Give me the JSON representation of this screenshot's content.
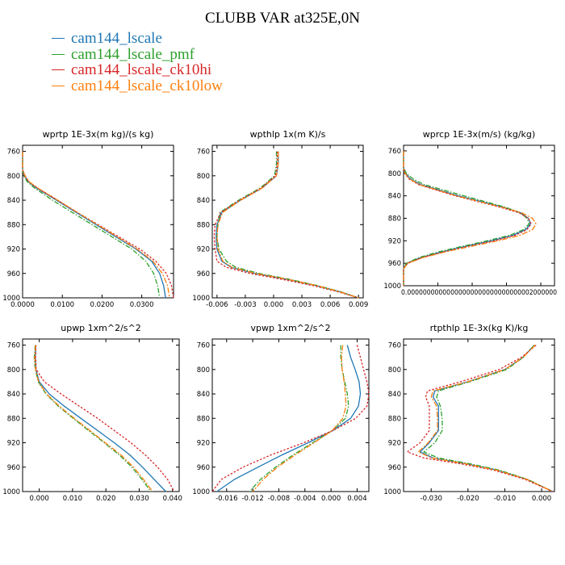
{
  "title": "CLUBB VAR at325E,0N",
  "legend": [
    {
      "name": "cam144_lscale",
      "color": "#1f77b4"
    },
    {
      "name": "cam144_lscale_pmf",
      "color": "#2ca02c"
    },
    {
      "name": "cam144_lscale_ck10hi",
      "color": "#d62728"
    },
    {
      "name": "cam144_lscale_ck10low",
      "color": "#ff7f0e"
    }
  ],
  "chart_data": [
    {
      "type": "line",
      "title": "wprtp   1E-3x(m kg)/(s kg)",
      "y_ticks": [
        "760",
        "800",
        "840",
        "880",
        "920",
        "960",
        "1000"
      ],
      "x_ticks": [
        "0.0000",
        "0.0100",
        "0.0200",
        "0.0300"
      ],
      "xlim": [
        0,
        0.038
      ],
      "ylim": [
        750,
        1000
      ],
      "y": [
        760,
        790,
        800,
        810,
        820,
        840,
        860,
        880,
        900,
        920,
        940,
        960,
        980,
        1000
      ],
      "series": [
        {
          "values": [
            0.0,
            0.0,
            0.0005,
            0.0015,
            0.0035,
            0.0085,
            0.0135,
            0.0185,
            0.0235,
            0.0285,
            0.0325,
            0.0345,
            0.0355,
            0.036
          ]
        },
        {
          "values": [
            0.0,
            0.0,
            0.0003,
            0.0012,
            0.003,
            0.0075,
            0.0125,
            0.0175,
            0.0225,
            0.0275,
            0.031,
            0.033,
            0.034,
            0.0345
          ]
        },
        {
          "values": [
            0.0,
            0.0,
            0.0005,
            0.0016,
            0.0037,
            0.0088,
            0.0138,
            0.019,
            0.0242,
            0.0295,
            0.0335,
            0.0362,
            0.0375,
            0.038
          ]
        },
        {
          "values": [
            0.0,
            0.0,
            0.0006,
            0.0017,
            0.0038,
            0.0088,
            0.0138,
            0.0188,
            0.0238,
            0.0288,
            0.0328,
            0.0352,
            0.0365,
            0.037
          ]
        }
      ]
    },
    {
      "type": "line",
      "title": "wpthlp   1x(m K)/s",
      "y_ticks": [
        "760",
        "800",
        "840",
        "880",
        "920",
        "960",
        "1000"
      ],
      "x_ticks": [
        "-0.006",
        "-0.003",
        "0.000",
        "0.003",
        "0.006",
        "0.009"
      ],
      "xlim": [
        -0.0065,
        0.0095
      ],
      "ylim": [
        750,
        1000
      ],
      "y": [
        760,
        780,
        800,
        820,
        840,
        860,
        880,
        900,
        920,
        940,
        950,
        960,
        970,
        980,
        990,
        1000
      ],
      "series": [
        {
          "values": [
            0.0005,
            0.0005,
            0.0003,
            -0.0012,
            -0.0035,
            -0.0055,
            -0.006,
            -0.0061,
            -0.006,
            -0.0055,
            -0.0045,
            -0.002,
            0.0015,
            0.0045,
            0.007,
            0.009
          ]
        },
        {
          "values": [
            0.0003,
            0.0003,
            0.0001,
            -0.0014,
            -0.0037,
            -0.0057,
            -0.0059,
            -0.006,
            -0.0058,
            -0.005,
            -0.004,
            -0.0015,
            0.0018,
            0.0047,
            0.0071,
            0.009
          ]
        },
        {
          "values": [
            0.0004,
            0.0004,
            0.0002,
            -0.0013,
            -0.0036,
            -0.0056,
            -0.0062,
            -0.0063,
            -0.0062,
            -0.006,
            -0.005,
            -0.0025,
            0.001,
            0.0042,
            0.0068,
            0.009
          ]
        },
        {
          "values": [
            0.0005,
            0.0005,
            0.0003,
            -0.0012,
            -0.0035,
            -0.0054,
            -0.0059,
            -0.006,
            -0.0059,
            -0.0054,
            -0.0044,
            -0.0019,
            0.0016,
            0.0046,
            0.007,
            0.009
          ]
        }
      ]
    },
    {
      "type": "line",
      "title": "wprcp   1E-3x(m/s) (kg/kg)",
      "y_ticks": [
        "760",
        "800",
        "840",
        "880",
        "920",
        "960",
        "1000"
      ],
      "x_ticks": [
        "0.000000",
        "0.000050",
        "0.000100",
        "0.000150",
        "0.000200"
      ],
      "x_tick_text": "0.00000000000000000000000000000002000000",
      "xlim": [
        0,
        0.00022
      ],
      "ylim": [
        750,
        1000
      ],
      "y": [
        760,
        790,
        800,
        810,
        820,
        840,
        860,
        870,
        880,
        890,
        900,
        910,
        920,
        930,
        940,
        950,
        960,
        970,
        1000
      ],
      "series": [
        {
          "values": [
            0,
            0,
            3e-06,
            1e-05,
            2.5e-05,
            8e-05,
            0.000145,
            0.00017,
            0.000182,
            0.000185,
            0.000178,
            0.00016,
            0.000128,
            9e-05,
            5.5e-05,
            2.5e-05,
            5e-06,
            0,
            0
          ]
        },
        {
          "values": [
            0,
            0,
            4e-06,
            1.4e-05,
            3e-05,
            8.8e-05,
            0.000148,
            0.00017,
            0.00018,
            0.000183,
            0.000175,
            0.000155,
            0.000122,
            8.5e-05,
            5e-05,
            2.2e-05,
            4e-06,
            0,
            0
          ]
        },
        {
          "values": [
            0,
            0,
            2e-06,
            8e-06,
            2.2e-05,
            7.5e-05,
            0.00014,
            0.000168,
            0.000182,
            0.000186,
            0.00018,
            0.000163,
            0.000132,
            9.3e-05,
            5.8e-05,
            2.7e-05,
            6e-06,
            0,
            0
          ]
        },
        {
          "values": [
            0,
            0,
            2e-06,
            9e-06,
            2.3e-05,
            7.7e-05,
            0.000143,
            0.000172,
            0.000188,
            0.000193,
            0.000188,
            0.00017,
            0.000138,
            9.8e-05,
            6e-05,
            2.8e-05,
            6e-06,
            0,
            0
          ]
        }
      ]
    },
    {
      "type": "line",
      "title": "upwp   1xm^2/s^2",
      "y_ticks": [
        "760",
        "800",
        "840",
        "880",
        "920",
        "960",
        "1000"
      ],
      "x_ticks": [
        "0.000",
        "0.010",
        "0.020",
        "0.030",
        "0.040"
      ],
      "xlim": [
        -0.005,
        0.042
      ],
      "ylim": [
        750,
        1000
      ],
      "y": [
        760,
        780,
        800,
        820,
        840,
        860,
        880,
        900,
        920,
        940,
        960,
        980,
        1000
      ],
      "series": [
        {
          "values": [
            -0.001,
            -0.0012,
            -0.001,
            0.0,
            0.003,
            0.0075,
            0.0125,
            0.0175,
            0.0225,
            0.0272,
            0.031,
            0.0345,
            0.038
          ]
        },
        {
          "values": [
            -0.0012,
            -0.0015,
            -0.0012,
            -0.0003,
            0.002,
            0.0057,
            0.0102,
            0.0148,
            0.0195,
            0.024,
            0.0278,
            0.0308,
            0.0335
          ]
        },
        {
          "values": [
            -0.001,
            -0.0011,
            -0.0009,
            0.0015,
            0.0065,
            0.012,
            0.0175,
            0.0225,
            0.0275,
            0.0318,
            0.0355,
            0.0385,
            0.0405
          ]
        },
        {
          "values": [
            -0.0011,
            -0.0014,
            -0.0011,
            -0.0002,
            0.0022,
            0.006,
            0.0105,
            0.0152,
            0.0198,
            0.0245,
            0.0283,
            0.0313,
            0.034
          ]
        }
      ]
    },
    {
      "type": "line",
      "title": "vpwp   1xm^2/s^2",
      "y_ticks": [
        "760",
        "800",
        "840",
        "880",
        "920",
        "960",
        "1000"
      ],
      "x_ticks": [
        "-0.016",
        "-0.012",
        "-0.008",
        "-0.004",
        "0.000",
        "0.004"
      ],
      "xlim": [
        -0.0182,
        0.0058
      ],
      "ylim": [
        750,
        1000
      ],
      "y": [
        760,
        780,
        800,
        820,
        840,
        860,
        880,
        900,
        920,
        940,
        960,
        980,
        1000
      ],
      "series": [
        {
          "values": [
            0.0025,
            0.003,
            0.0037,
            0.0043,
            0.0045,
            0.0042,
            0.003,
            0.0003,
            -0.0035,
            -0.0075,
            -0.0112,
            -0.0148,
            -0.0175
          ]
        },
        {
          "values": [
            0.0015,
            0.0015,
            0.0017,
            0.0021,
            0.0025,
            0.0027,
            0.0022,
            0.0002,
            -0.0028,
            -0.0058,
            -0.0085,
            -0.0108,
            -0.0125
          ]
        },
        {
          "values": [
            0.004,
            0.0045,
            0.005,
            0.0055,
            0.0058,
            0.0055,
            0.0038,
            0.0003,
            -0.0042,
            -0.0092,
            -0.0135,
            -0.0168,
            -0.0182
          ]
        },
        {
          "values": [
            0.0018,
            0.0016,
            0.0017,
            0.002,
            0.0022,
            0.0023,
            0.0018,
            0.0002,
            -0.0026,
            -0.0055,
            -0.0082,
            -0.0104,
            -0.012
          ]
        }
      ]
    },
    {
      "type": "line",
      "title": "rtpthlp   1E-3x(kg K)/kg",
      "y_ticks": [
        "760",
        "800",
        "840",
        "880",
        "920",
        "960",
        "1000"
      ],
      "x_ticks": [
        "-0.030",
        "-0.020",
        "-0.010",
        "0.000"
      ],
      "xlim": [
        -0.0375,
        0.0035
      ],
      "ylim": [
        750,
        1000
      ],
      "y": [
        760,
        780,
        800,
        820,
        835,
        845,
        860,
        880,
        900,
        920,
        935,
        945,
        955,
        965,
        980,
        1000
      ],
      "series": [
        {
          "values": [
            -0.002,
            -0.005,
            -0.01,
            -0.02,
            -0.029,
            -0.0295,
            -0.028,
            -0.028,
            -0.028,
            -0.0305,
            -0.033,
            -0.0295,
            -0.02,
            -0.012,
            -0.004,
            0.003
          ]
        },
        {
          "values": [
            -0.002,
            -0.005,
            -0.0095,
            -0.0195,
            -0.028,
            -0.0285,
            -0.0275,
            -0.027,
            -0.027,
            -0.029,
            -0.032,
            -0.028,
            -0.019,
            -0.0115,
            -0.0038,
            0.003
          ]
        },
        {
          "values": [
            -0.0015,
            -0.0055,
            -0.0115,
            -0.022,
            -0.031,
            -0.0315,
            -0.0305,
            -0.0305,
            -0.0305,
            -0.033,
            -0.0365,
            -0.032,
            -0.0215,
            -0.013,
            -0.0045,
            0.003
          ]
        },
        {
          "values": [
            -0.0018,
            -0.005,
            -0.01,
            -0.02,
            -0.0295,
            -0.03,
            -0.0285,
            -0.0283,
            -0.0283,
            -0.0308,
            -0.0335,
            -0.0298,
            -0.0202,
            -0.0122,
            -0.004,
            0.003
          ]
        }
      ]
    }
  ]
}
